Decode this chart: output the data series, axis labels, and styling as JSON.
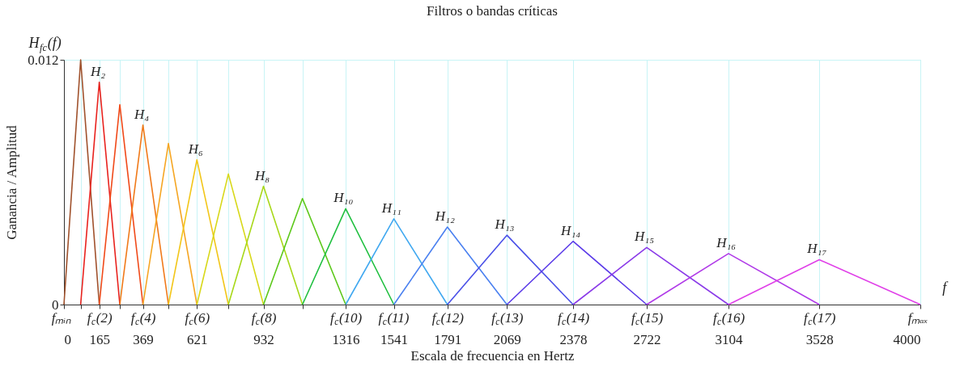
{
  "chart_data": {
    "type": "line",
    "title": "Filtros o bandas críticas",
    "xlabel": "Escala de frecuencia en Hertz",
    "ylabel": "Ganancia / Amplitud",
    "annotations": [
      "H$_{fc}$(f)",
      "f",
      {
        "text": "fₘᵢₙ",
        "x": 0,
        "y": 0
      },
      {
        "text": "f$_{c}$(2)",
        "x": 165,
        "y": 0
      },
      {
        "text": "f$_{c}$(4)",
        "x": 369,
        "y": 0
      },
      {
        "text": "f$_{c}$(6)",
        "x": 621,
        "y": 0
      },
      {
        "text": "f$_{c}$(8)",
        "x": 932,
        "y": 0
      },
      {
        "text": "f$_{c}$(10)",
        "x": 1316,
        "y": 0
      },
      {
        "text": "f$_{c}$(11)",
        "x": 1541,
        "y": 0
      },
      {
        "text": "f$_{c}$(12)",
        "x": 1791,
        "y": 0
      },
      {
        "text": "f$_{c}$(13)",
        "x": 2069,
        "y": 0
      },
      {
        "text": "f$_{c}$(14)",
        "x": 2378,
        "y": 0
      },
      {
        "text": "f$_{c}$(15)",
        "x": 2722,
        "y": 0
      },
      {
        "text": "f$_{c}$(16)",
        "x": 3104,
        "y": 0
      },
      {
        "text": "f$_{c}$(17)",
        "x": 3528,
        "y": 0
      },
      {
        "text": "fₘₐₓ",
        "x": 4000,
        "y": 0
      },
      {
        "text": "H₂",
        "x": 165,
        "y": 0.0109
      },
      {
        "text": "H₄",
        "x": 369,
        "y": 0.0088
      },
      {
        "text": "H₆",
        "x": 621,
        "y": 0.0071
      },
      {
        "text": "H₈",
        "x": 932,
        "y": 0.0058
      },
      {
        "text": "H₁₀",
        "x": 1316,
        "y": 0.0047
      },
      {
        "text": "H₁₁",
        "x": 1541,
        "y": 0.0042
      },
      {
        "text": "H₁₂",
        "x": 1791,
        "y": 0.0038
      },
      {
        "text": "H₁₃",
        "x": 2069,
        "y": 0.0034
      },
      {
        "text": "H₁₄",
        "x": 2378,
        "y": 0.0031
      },
      {
        "text": "H₁₅",
        "x": 2722,
        "y": 0.0028
      },
      {
        "text": "H₁₆",
        "x": 3104,
        "y": 0.0025
      },
      {
        "text": "H₁₇",
        "x": 3528,
        "y": 0.0022
      }
    ],
    "xlim": [
      0,
      4000
    ],
    "ylim": [
      0,
      0.012
    ],
    "yticks": [
      0,
      0.012
    ],
    "xticks": [
      0,
      {
        "value": 78,
        "label": null
      },
      165,
      {
        "value": 261,
        "label": null
      },
      369,
      {
        "value": 488,
        "label": null
      },
      621,
      {
        "value": 768,
        "label": null
      },
      932,
      {
        "value": 1114,
        "label": null
      },
      1316,
      1541,
      1791,
      2069,
      2378,
      2722,
      3104,
      3528,
      4000
    ],
    "grid": true,
    "legend": false,
    "marker": "none",
    "line_style": "solid",
    "series": [
      {
        "color": "#a0522d",
        "x": [
          0,
          78,
          165
        ],
        "values": [
          0,
          0.012,
          0
        ]
      },
      {
        "color": "#e8231e",
        "x": [
          78,
          165,
          261
        ],
        "values": [
          0,
          0.0109,
          0
        ]
      },
      {
        "color": "#f04a1a",
        "x": [
          165,
          261,
          369
        ],
        "values": [
          0,
          0.0098,
          0
        ]
      },
      {
        "color": "#f07a1a",
        "x": [
          261,
          369,
          488
        ],
        "values": [
          0,
          0.0088,
          0
        ]
      },
      {
        "color": "#f5a623",
        "x": [
          369,
          488,
          621
        ],
        "values": [
          0,
          0.0079,
          0
        ]
      },
      {
        "color": "#f2c61a",
        "x": [
          488,
          621,
          768
        ],
        "values": [
          0,
          0.0071,
          0
        ]
      },
      {
        "color": "#d8d81a",
        "x": [
          621,
          768,
          932
        ],
        "values": [
          0,
          0.0064,
          0
        ]
      },
      {
        "color": "#a8d81a",
        "x": [
          768,
          932,
          1114
        ],
        "values": [
          0,
          0.0058,
          0
        ]
      },
      {
        "color": "#5cc81a",
        "x": [
          932,
          1114,
          1316
        ],
        "values": [
          0,
          0.0052,
          0
        ]
      },
      {
        "color": "#20c040",
        "x": [
          1114,
          1316,
          1541
        ],
        "values": [
          0,
          0.0047,
          0
        ]
      },
      {
        "color": "#40a8f0",
        "x": [
          1316,
          1541,
          1791
        ],
        "values": [
          0,
          0.0042,
          0
        ]
      },
      {
        "color": "#4a80f0",
        "x": [
          1541,
          1791,
          2069
        ],
        "values": [
          0,
          0.0038,
          0
        ]
      },
      {
        "color": "#4a50e8",
        "x": [
          1791,
          2069,
          2378
        ],
        "values": [
          0,
          0.0034,
          0
        ]
      },
      {
        "color": "#5a3ae8",
        "x": [
          2069,
          2378,
          2722
        ],
        "values": [
          0,
          0.0031,
          0
        ]
      },
      {
        "color": "#8a3ae8",
        "x": [
          2378,
          2722,
          3104
        ],
        "values": [
          0,
          0.0028,
          0
        ]
      },
      {
        "color": "#b03ae8",
        "x": [
          2722,
          3104,
          3528
        ],
        "values": [
          0,
          0.0025,
          0
        ]
      },
      {
        "color": "#e040e8",
        "x": [
          3104,
          3528,
          4000
        ],
        "values": [
          0,
          0.0022,
          0
        ]
      }
    ]
  }
}
